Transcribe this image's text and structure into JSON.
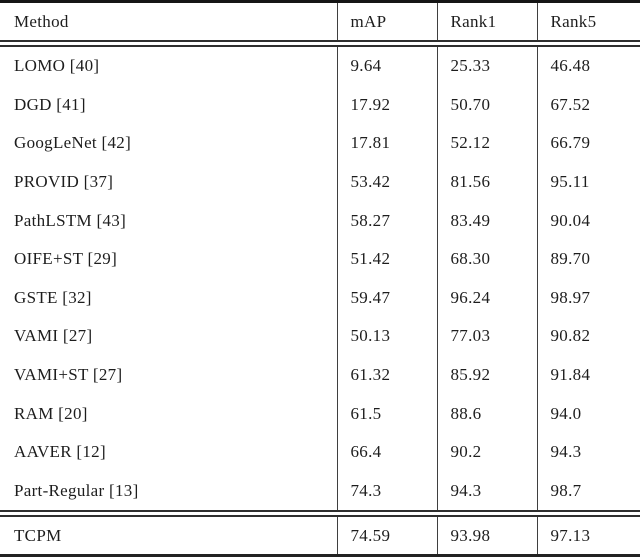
{
  "table": {
    "columns": [
      {
        "label": "Method"
      },
      {
        "label": "mAP"
      },
      {
        "label": "Rank1"
      },
      {
        "label": "Rank5"
      }
    ],
    "rows": [
      {
        "method": "LOMO [40]",
        "map": "9.64",
        "rank1": "25.33",
        "rank5": "46.48"
      },
      {
        "method": "DGD [41]",
        "map": "17.92",
        "rank1": "50.70",
        "rank5": "67.52"
      },
      {
        "method": "GoogLeNet [42]",
        "map": "17.81",
        "rank1": "52.12",
        "rank5": "66.79"
      },
      {
        "method": "PROVID [37]",
        "map": "53.42",
        "rank1": "81.56",
        "rank5": "95.11"
      },
      {
        "method": "PathLSTM [43]",
        "map": "58.27",
        "rank1": "83.49",
        "rank5": "90.04"
      },
      {
        "method": "OIFE+ST [29]",
        "map": "51.42",
        "rank1": "68.30",
        "rank5": "89.70"
      },
      {
        "method": "GSTE [32]",
        "map": "59.47",
        "rank1": "96.24",
        "rank5": "98.97"
      },
      {
        "method": "VAMI [27]",
        "map": "50.13",
        "rank1": "77.03",
        "rank5": "90.82"
      },
      {
        "method": "VAMI+ST [27]",
        "map": "61.32",
        "rank1": "85.92",
        "rank5": "91.84"
      },
      {
        "method": "RAM [20]",
        "map": "61.5",
        "rank1": "88.6",
        "rank5": "94.0"
      },
      {
        "method": "AAVER [12]",
        "map": "66.4",
        "rank1": "90.2",
        "rank5": "94.3"
      },
      {
        "method": "Part-Regular [13]",
        "map": "74.3",
        "rank1": "94.3",
        "rank5": "98.7"
      }
    ],
    "footer_row": {
      "method": "TCPM",
      "map": "74.59",
      "rank1": "93.98",
      "rank5": "97.13"
    }
  },
  "colors": {
    "background": "#ffffff",
    "text": "#1d1d1d",
    "rule": "#151515",
    "double_rule": "#2e2e2e",
    "column_separator": "#3f3f3f"
  }
}
